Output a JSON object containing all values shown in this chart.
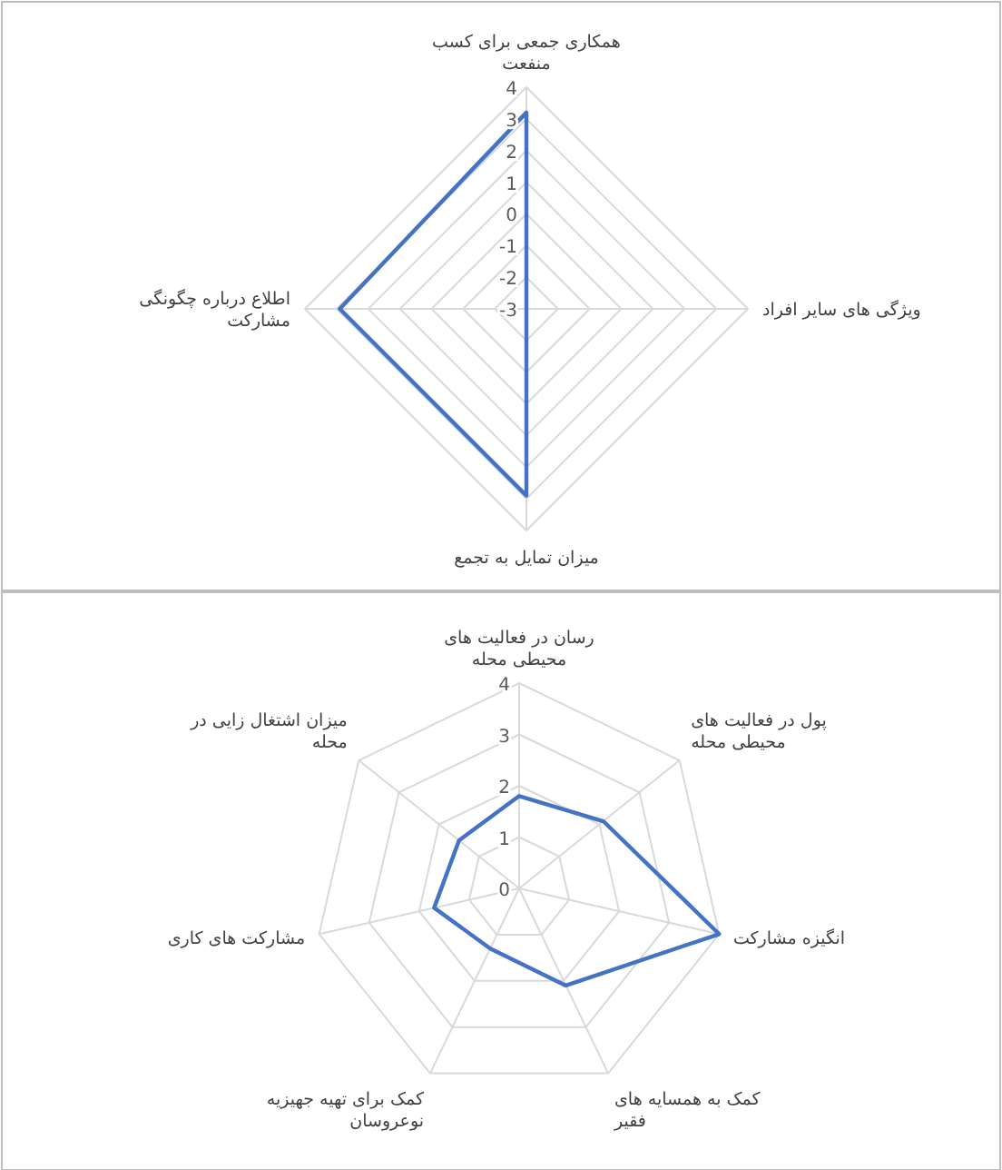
{
  "chart_data": [
    {
      "type": "radar",
      "categories": [
        "همکاری جمعی برای کسب منفعت",
        "ویژگی های سایر افراد",
        "میزان تمایل به تجمع",
        "اطلاع درباره چگونگی مشارکت"
      ],
      "ylim": [
        -3,
        4
      ],
      "yticks": [
        -3,
        -2,
        -1,
        0,
        1,
        2,
        3,
        4
      ],
      "grid": true,
      "series": [
        {
          "color": "#4472c4",
          "values": [
            3.2,
            -3,
            2.9,
            2.9
          ]
        }
      ]
    },
    {
      "type": "radar",
      "categories": [
        "رسان در فعالیت های محیطی محله",
        "پول در فعالیت های محیطی محله",
        "انگیزه مشارکت",
        "کمک به همسایه های فقیر",
        "کمک برای تهیه جهیزیه نوعروسان",
        "مشارکت های کاری",
        "میزان اشتغال زایی در محله"
      ],
      "ylim": [
        0,
        4
      ],
      "yticks": [
        0,
        1,
        2,
        3,
        4
      ],
      "grid": true,
      "series": [
        {
          "color": "#4472c4",
          "values": [
            1.8,
            2.1,
            4,
            2.1,
            1.3,
            1.7,
            1.5
          ]
        }
      ]
    }
  ]
}
